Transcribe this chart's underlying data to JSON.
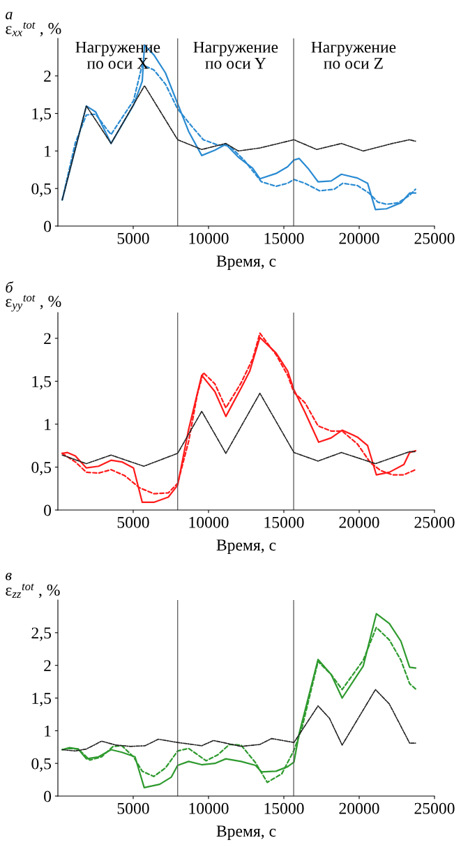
{
  "chart_data": [
    {
      "type": "line",
      "title": "а",
      "ylabel": "ε$_{xx}$$^{tot}$ , %",
      "xlabel": "Время, с",
      "annotations": [
        "Нагружение\nпо оси X",
        "Нагружение\nпо оси Y",
        "Нагружение\nпо оси Z"
      ],
      "xlim": [
        0,
        25000
      ],
      "xticks": [
        5000,
        10000,
        15000,
        20000,
        25000
      ],
      "ylim": [
        0,
        2.5
      ],
      "yticks": [
        0,
        {
          "value": 0.5,
          "label": "0,5"
        },
        1,
        {
          "value": 1.5,
          "label": "1,5"
        },
        2
      ],
      "grid": false,
      "legend": false,
      "ref_lines": [
        {
          "axis": "x",
          "value": 7950,
          "color": "#555555"
        },
        {
          "axis": "x",
          "value": 15650,
          "color": "#555555"
        }
      ],
      "series": [
        {
          "color": "#222222",
          "line_style": "dashdot",
          "x": [
            290,
            1890,
            3530,
            5750,
            7950,
            9550,
            11150,
            11970,
            13410,
            15670,
            17180,
            18820,
            20270,
            22200,
            23350,
            23740
          ],
          "values": [
            0.35,
            1.6,
            1.1,
            1.87,
            1.15,
            1.02,
            1.1,
            1.0,
            1.04,
            1.15,
            1.02,
            1.1,
            1.0,
            1.1,
            1.15,
            1.13
          ]
        },
        {
          "color": "#2a8bd2",
          "line_style": "solid",
          "x": [
            290,
            1890,
            2510,
            3530,
            5020,
            5600,
            5750,
            6370,
            7140,
            7950,
            8680,
            9550,
            10420,
            11150,
            11970,
            12930,
            13410,
            14480,
            15250,
            15670,
            16020,
            16600,
            17270,
            18140,
            18820,
            19880,
            20560,
            21080,
            21810,
            22770,
            23350,
            23740
          ],
          "values": [
            0.35,
            1.6,
            1.52,
            1.1,
            1.61,
            1.93,
            2.41,
            2.28,
            2.04,
            1.63,
            1.26,
            0.94,
            1.01,
            1.09,
            0.92,
            0.77,
            0.63,
            0.7,
            0.79,
            0.88,
            0.9,
            0.77,
            0.59,
            0.6,
            0.69,
            0.64,
            0.57,
            0.22,
            0.23,
            0.31,
            0.44,
            0.44
          ]
        },
        {
          "color": "#2a8bd2",
          "line_style": "dashed",
          "x": [
            290,
            1160,
            1890,
            2510,
            3280,
            3530,
            4250,
            5020,
            5600,
            6370,
            7140,
            7950,
            8880,
            9650,
            10610,
            11390,
            12350,
            13510,
            14480,
            15250,
            15670,
            16400,
            17370,
            18340,
            18910,
            19880,
            20650,
            21230,
            21810,
            22580,
            23350,
            23740
          ],
          "values": [
            0.35,
            1.11,
            1.48,
            1.49,
            1.28,
            1.22,
            1.44,
            1.67,
            2.15,
            2.08,
            1.89,
            1.56,
            1.33,
            1.15,
            1.08,
            1.07,
            0.88,
            0.59,
            0.53,
            0.57,
            0.62,
            0.57,
            0.47,
            0.49,
            0.57,
            0.54,
            0.44,
            0.32,
            0.29,
            0.31,
            0.41,
            0.49
          ]
        }
      ]
    },
    {
      "type": "line",
      "title": "б",
      "ylabel": "ε$_{yy}$$^{tot}$ , %",
      "xlabel": "Время, с",
      "xlim": [
        0,
        25000
      ],
      "xticks": [
        5000,
        10000,
        15000,
        20000,
        25000
      ],
      "ylim": [
        0,
        2.3
      ],
      "yticks": [
        0,
        {
          "value": 0.5,
          "label": "0,5"
        },
        1,
        {
          "value": 1.5,
          "label": "1,5"
        },
        2
      ],
      "grid": false,
      "legend": false,
      "ref_lines": [
        {
          "axis": "x",
          "value": 7950,
          "color": "#555555"
        },
        {
          "axis": "x",
          "value": 15650,
          "color": "#555555"
        }
      ],
      "series": [
        {
          "color": "#222222",
          "line_style": "dashdot",
          "x": [
            290,
            1890,
            3530,
            5700,
            7950,
            9550,
            11150,
            13410,
            15670,
            17270,
            18820,
            21080,
            23350,
            23740
          ],
          "values": [
            0.64,
            0.54,
            0.64,
            0.51,
            0.66,
            1.15,
            0.66,
            1.36,
            0.67,
            0.57,
            0.67,
            0.54,
            0.68,
            0.68
          ]
        },
        {
          "color": "#ff1a1a",
          "line_style": "solid",
          "x": [
            290,
            620,
            1160,
            1890,
            2700,
            3530,
            4250,
            5020,
            5600,
            6370,
            7330,
            7950,
            8680,
            9550,
            10420,
            11150,
            12160,
            12740,
            13410,
            14480,
            15250,
            15670,
            16400,
            17310,
            18140,
            18870,
            19880,
            20560,
            21140,
            22000,
            22970,
            23350,
            23740
          ],
          "values": [
            0.66,
            0.67,
            0.63,
            0.49,
            0.51,
            0.58,
            0.56,
            0.49,
            0.09,
            0.09,
            0.15,
            0.29,
            0.94,
            1.57,
            1.38,
            1.09,
            1.42,
            1.62,
            2.01,
            1.83,
            1.62,
            1.4,
            1.14,
            0.79,
            0.84,
            0.93,
            0.85,
            0.75,
            0.41,
            0.44,
            0.53,
            0.67,
            0.69
          ]
        },
        {
          "color": "#ff1a1a",
          "line_style": "dashed",
          "x": [
            290,
            1160,
            1890,
            2700,
            3530,
            4440,
            5410,
            6370,
            7330,
            7950,
            8680,
            9260,
            9650,
            10420,
            11150,
            12160,
            12930,
            13410,
            14480,
            15250,
            15670,
            16400,
            17270,
            18140,
            18870,
            19880,
            20750,
            21430,
            22200,
            22970,
            23740
          ],
          "values": [
            0.66,
            0.56,
            0.44,
            0.43,
            0.47,
            0.4,
            0.26,
            0.19,
            0.2,
            0.31,
            0.8,
            1.35,
            1.6,
            1.47,
            1.19,
            1.48,
            1.76,
            2.06,
            1.81,
            1.57,
            1.37,
            1.25,
            0.98,
            0.92,
            0.92,
            0.77,
            0.55,
            0.46,
            0.41,
            0.41,
            0.47
          ]
        }
      ]
    },
    {
      "type": "line",
      "title": "в",
      "ylabel": "ε$_{zz}$$^{tot}$ , %",
      "xlabel": "Время, с",
      "xlim": [
        0,
        25000
      ],
      "xticks": [
        5000,
        10000,
        15000,
        20000,
        25000
      ],
      "ylim": [
        0,
        3.0
      ],
      "yticks": [
        0,
        {
          "value": 0.5,
          "label": "0,5"
        },
        1,
        {
          "value": 1.5,
          "label": "1,5"
        },
        2,
        {
          "value": 2.5,
          "label": "2,5"
        }
      ],
      "grid": false,
      "legend": false,
      "ref_lines": [
        {
          "axis": "x",
          "value": 7950,
          "color": "#555555"
        },
        {
          "axis": "x",
          "value": 15650,
          "color": "#555555"
        }
      ],
      "series": [
        {
          "color": "#222222",
          "line_style": "dashdot",
          "x": [
            290,
            1160,
            1890,
            2900,
            3860,
            4830,
            5790,
            6660,
            7950,
            9550,
            10330,
            11150,
            12160,
            13410,
            14190,
            15670,
            17270,
            18030,
            18870,
            21080,
            22000,
            23350,
            23740
          ],
          "values": [
            0.71,
            0.69,
            0.72,
            0.84,
            0.78,
            0.76,
            0.77,
            0.87,
            0.82,
            0.77,
            0.85,
            0.81,
            0.76,
            0.79,
            0.88,
            0.82,
            1.38,
            1.19,
            0.78,
            1.63,
            1.41,
            0.81,
            0.81
          ]
        },
        {
          "color": "#2e9a2e",
          "line_style": "solid",
          "x": [
            290,
            770,
            1350,
            1890,
            2700,
            3530,
            4250,
            5120,
            5730,
            6760,
            7530,
            7950,
            8680,
            9550,
            10420,
            11150,
            12160,
            13120,
            13510,
            14480,
            15250,
            15670,
            16020,
            17270,
            18140,
            18870,
            20270,
            21140,
            22000,
            22770,
            23350,
            23740
          ],
          "values": [
            0.71,
            0.74,
            0.72,
            0.57,
            0.6,
            0.71,
            0.67,
            0.6,
            0.13,
            0.18,
            0.29,
            0.47,
            0.53,
            0.48,
            0.5,
            0.57,
            0.53,
            0.47,
            0.37,
            0.38,
            0.45,
            0.52,
            0.96,
            2.09,
            1.86,
            1.5,
            1.99,
            2.79,
            2.64,
            2.37,
            1.97,
            1.96
          ]
        },
        {
          "color": "#2e9a2e",
          "line_style": "dashed",
          "x": [
            290,
            770,
            1350,
            2120,
            2900,
            3670,
            4250,
            5020,
            5600,
            6370,
            7140,
            7950,
            8680,
            9840,
            10610,
            11390,
            12160,
            13120,
            13900,
            14860,
            15670,
            16210,
            17270,
            18140,
            18870,
            20270,
            21140,
            22000,
            22770,
            23350,
            23740
          ],
          "values": [
            0.71,
            0.73,
            0.72,
            0.55,
            0.6,
            0.76,
            0.77,
            0.6,
            0.38,
            0.3,
            0.43,
            0.69,
            0.73,
            0.54,
            0.63,
            0.79,
            0.78,
            0.51,
            0.21,
            0.34,
            0.7,
            1.05,
            2.06,
            1.86,
            1.63,
            2.08,
            2.58,
            2.39,
            2.08,
            1.72,
            1.64
          ]
        }
      ]
    }
  ]
}
